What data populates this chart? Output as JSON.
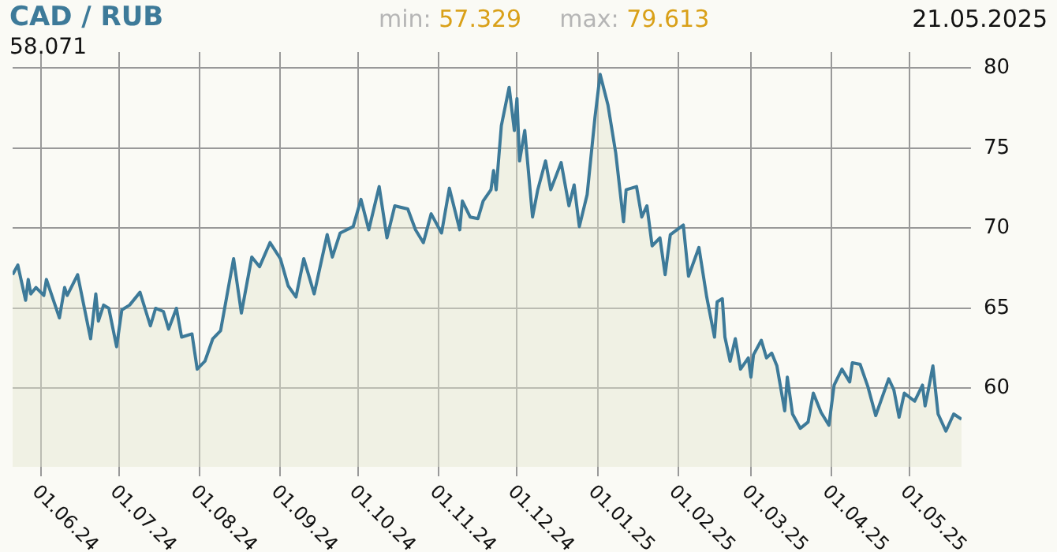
{
  "chart_data": {
    "type": "area",
    "title": "CAD / RUB",
    "annotations": [
      "min: 57.329",
      "max: 79.613",
      "21.05.2025",
      "58.071"
    ],
    "x": [
      "2024-05-21",
      "2024-05-23",
      "2024-05-26",
      "2024-05-27",
      "2024-05-28",
      "2024-05-30",
      "2024-06-02",
      "2024-06-03",
      "2024-06-08",
      "2024-06-10",
      "2024-06-11",
      "2024-06-15",
      "2024-06-20",
      "2024-06-22",
      "2024-06-23",
      "2024-06-25",
      "2024-06-27",
      "2024-06-30",
      "2024-07-02",
      "2024-07-05",
      "2024-07-09",
      "2024-07-13",
      "2024-07-15",
      "2024-07-18",
      "2024-07-20",
      "2024-07-23",
      "2024-07-25",
      "2024-07-29",
      "2024-07-31",
      "2024-08-03",
      "2024-08-06",
      "2024-08-09",
      "2024-08-14",
      "2024-08-17",
      "2024-08-21",
      "2024-08-24",
      "2024-08-28",
      "2024-09-01",
      "2024-09-04",
      "2024-09-07",
      "2024-09-10",
      "2024-09-14",
      "2024-09-19",
      "2024-09-21",
      "2024-09-24",
      "2024-09-29",
      "2024-10-02",
      "2024-10-05",
      "2024-10-09",
      "2024-10-12",
      "2024-10-15",
      "2024-10-20",
      "2024-10-23",
      "2024-10-26",
      "2024-10-29",
      "2024-11-02",
      "2024-11-05",
      "2024-11-09",
      "2024-11-10",
      "2024-11-13",
      "2024-11-16",
      "2024-11-18",
      "2024-11-21",
      "2024-11-22",
      "2024-11-23",
      "2024-11-25",
      "2024-11-28",
      "2024-11-30",
      "2024-12-01",
      "2024-12-02",
      "2024-12-04",
      "2024-12-07",
      "2024-12-09",
      "2024-12-12",
      "2024-12-14",
      "2024-12-18",
      "2024-12-21",
      "2024-12-23",
      "2024-12-25",
      "2024-12-28",
      "2024-12-31",
      "2025-01-02",
      "2025-01-05",
      "2025-01-08",
      "2025-01-11",
      "2025-01-12",
      "2025-01-16",
      "2025-01-18",
      "2025-01-20",
      "2025-01-22",
      "2025-01-25",
      "2025-01-27",
      "2025-01-29",
      "2025-02-03",
      "2025-02-05",
      "2025-02-09",
      "2025-02-12",
      "2025-02-15",
      "2025-02-16",
      "2025-02-18",
      "2025-02-19",
      "2025-02-21",
      "2025-02-23",
      "2025-02-25",
      "2025-02-28",
      "2025-03-01",
      "2025-03-02",
      "2025-03-05",
      "2025-03-07",
      "2025-03-09",
      "2025-03-11",
      "2025-03-14",
      "2025-03-15",
      "2025-03-17",
      "2025-03-20",
      "2025-03-23",
      "2025-03-25",
      "2025-03-28",
      "2025-03-31",
      "2025-04-02",
      "2025-04-05",
      "2025-04-08",
      "2025-04-09",
      "2025-04-12",
      "2025-04-15",
      "2025-04-18",
      "2025-04-23",
      "2025-04-25",
      "2025-04-27",
      "2025-04-29",
      "2025-05-03",
      "2025-05-06",
      "2025-05-07",
      "2025-05-08",
      "2025-05-10",
      "2025-05-12",
      "2025-05-15",
      "2025-05-18",
      "2025-05-21"
    ],
    "series": [
      {
        "color": "#3d7a99",
        "values": [
          67.1,
          67.7,
          65.5,
          66.8,
          65.9,
          66.3,
          65.8,
          66.8,
          64.4,
          66.3,
          65.8,
          67.1,
          63.1,
          65.9,
          64.2,
          65.2,
          65.0,
          62.6,
          64.9,
          65.2,
          66.0,
          63.9,
          65.0,
          64.8,
          63.7,
          65.0,
          63.2,
          63.4,
          61.2,
          61.7,
          63.1,
          63.6,
          68.1,
          64.7,
          68.2,
          67.6,
          69.1,
          68.1,
          66.4,
          65.7,
          68.1,
          65.9,
          69.6,
          68.2,
          69.7,
          70.1,
          71.8,
          69.9,
          72.6,
          69.4,
          71.4,
          71.2,
          69.9,
          69.1,
          70.9,
          69.7,
          72.5,
          69.9,
          71.7,
          70.7,
          70.6,
          71.7,
          72.4,
          73.6,
          72.4,
          76.4,
          78.8,
          76.1,
          78.1,
          74.2,
          76.1,
          70.7,
          72.4,
          74.2,
          72.4,
          74.1,
          71.4,
          72.7,
          70.1,
          72.1,
          76.9,
          79.613,
          77.7,
          74.7,
          70.4,
          72.4,
          72.6,
          70.7,
          71.4,
          68.9,
          69.4,
          67.1,
          69.6,
          70.2,
          67.0,
          68.8,
          65.7,
          63.2,
          65.4,
          65.6,
          63.2,
          61.7,
          63.1,
          61.2,
          61.9,
          60.7,
          62.1,
          63.0,
          61.9,
          62.2,
          61.4,
          58.6,
          60.7,
          58.4,
          57.5,
          57.9,
          59.7,
          58.5,
          57.7,
          60.2,
          61.2,
          60.4,
          61.6,
          61.5,
          60.1,
          58.3,
          60.6,
          59.9,
          58.2,
          59.7,
          59.2,
          60.2,
          58.9,
          59.7,
          61.4,
          58.4,
          57.329,
          58.4,
          58.071
        ]
      }
    ],
    "xlim": [
      "2024-05-21",
      "2025-05-21"
    ],
    "xticks": [
      {
        "value": "2024-06-01",
        "label": "01.06.24"
      },
      {
        "value": "2024-07-01",
        "label": "01.07.24"
      },
      {
        "value": "2024-08-01",
        "label": "01.08.24"
      },
      {
        "value": "2024-09-01",
        "label": "01.09.24"
      },
      {
        "value": "2024-10-01",
        "label": "01.10.24"
      },
      {
        "value": "2024-11-01",
        "label": "01.11.24"
      },
      {
        "value": "2024-12-01",
        "label": "01.12.24"
      },
      {
        "value": "2025-01-01",
        "label": "01.01.25"
      },
      {
        "value": "2025-02-01",
        "label": "01.02.25"
      },
      {
        "value": "2025-03-01",
        "label": "01.03.25"
      },
      {
        "value": "2025-04-01",
        "label": "01.04.25"
      },
      {
        "value": "2025-05-01",
        "label": "01.05.25"
      }
    ],
    "ylim": [
      55.1,
      81
    ],
    "yticks": [
      60,
      65,
      70,
      75,
      80
    ],
    "grid": true,
    "legend": false,
    "marker": "none",
    "line_style": "solid"
  }
}
